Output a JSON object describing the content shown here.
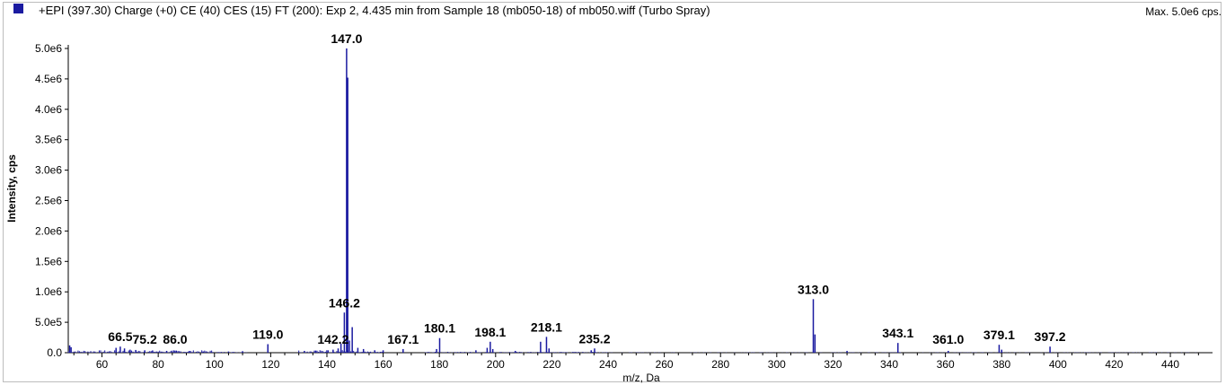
{
  "header": {
    "title": "+EPI (397.30) Charge (+0) CE (40) CES (15) FT (200): Exp 2, 4.435 min from Sample 18 (mb050-18) of mb050.wiff (Turbo Spray)",
    "max_label": "Max. 5.0e6 cps.",
    "series_color": "#1a1aa0",
    "legend_icon": "blue-square-icon"
  },
  "chart_data": {
    "type": "bar",
    "title": "+EPI (397.30) Charge (+0) CE (40) CES (15) FT (200): Exp 2, 4.435 min from Sample 18 (mb050-18) of mb050.wiff (Turbo Spray)",
    "xlabel": "m/z, Da",
    "ylabel": "Intensity, cps",
    "xlim": [
      48,
      455
    ],
    "ylim": [
      0,
      5000000.0
    ],
    "x_ticks": [
      60,
      80,
      100,
      120,
      140,
      160,
      180,
      200,
      220,
      240,
      260,
      280,
      300,
      320,
      340,
      360,
      380,
      400,
      420,
      440
    ],
    "y_ticks": [
      {
        "value": 0,
        "label": "0.0"
      },
      {
        "value": 500000,
        "label": "5.0e5"
      },
      {
        "value": 1000000,
        "label": "1.0e6"
      },
      {
        "value": 1500000,
        "label": "1.5e6"
      },
      {
        "value": 2000000,
        "label": "2.0e6"
      },
      {
        "value": 2500000,
        "label": "2.5e6"
      },
      {
        "value": 3000000,
        "label": "3.0e6"
      },
      {
        "value": 3500000,
        "label": "3.5e6"
      },
      {
        "value": 4000000,
        "label": "4.0e6"
      },
      {
        "value": 4500000,
        "label": "4.5e6"
      },
      {
        "value": 5000000,
        "label": "5.0e6"
      }
    ],
    "grid": false,
    "peaks": [
      {
        "mz": 48.5,
        "intensity": 120000
      },
      {
        "mz": 49.0,
        "intensity": 90000
      },
      {
        "mz": 65.0,
        "intensity": 80000
      },
      {
        "mz": 66.5,
        "intensity": 100000
      },
      {
        "mz": 68.0,
        "intensity": 70000
      },
      {
        "mz": 70.0,
        "intensity": 50000
      },
      {
        "mz": 72.0,
        "intensity": 45000
      },
      {
        "mz": 75.2,
        "intensity": 40000
      },
      {
        "mz": 78.0,
        "intensity": 35000
      },
      {
        "mz": 83.0,
        "intensity": 30000
      },
      {
        "mz": 86.0,
        "intensity": 30000
      },
      {
        "mz": 91.0,
        "intensity": 25000
      },
      {
        "mz": 96.0,
        "intensity": 20000
      },
      {
        "mz": 105.0,
        "intensity": 20000
      },
      {
        "mz": 110.0,
        "intensity": 25000
      },
      {
        "mz": 119.0,
        "intensity": 140000
      },
      {
        "mz": 132.0,
        "intensity": 30000
      },
      {
        "mz": 136.0,
        "intensity": 35000
      },
      {
        "mz": 140.0,
        "intensity": 40000
      },
      {
        "mz": 142.2,
        "intensity": 50000
      },
      {
        "mz": 144.0,
        "intensity": 70000
      },
      {
        "mz": 145.0,
        "intensity": 150000
      },
      {
        "mz": 146.2,
        "intensity": 660000
      },
      {
        "mz": 147.0,
        "intensity": 5000000
      },
      {
        "mz": 147.4,
        "intensity": 4520000
      },
      {
        "mz": 148.0,
        "intensity": 200000
      },
      {
        "mz": 149.0,
        "intensity": 420000
      },
      {
        "mz": 151.0,
        "intensity": 80000
      },
      {
        "mz": 153.0,
        "intensity": 60000
      },
      {
        "mz": 157.0,
        "intensity": 40000
      },
      {
        "mz": 160.0,
        "intensity": 40000
      },
      {
        "mz": 167.1,
        "intensity": 60000
      },
      {
        "mz": 180.1,
        "intensity": 240000
      },
      {
        "mz": 179.0,
        "intensity": 60000
      },
      {
        "mz": 193.0,
        "intensity": 40000
      },
      {
        "mz": 197.0,
        "intensity": 80000
      },
      {
        "mz": 198.1,
        "intensity": 180000
      },
      {
        "mz": 199.0,
        "intensity": 60000
      },
      {
        "mz": 207.0,
        "intensity": 30000
      },
      {
        "mz": 216.0,
        "intensity": 180000
      },
      {
        "mz": 218.1,
        "intensity": 260000
      },
      {
        "mz": 219.0,
        "intensity": 70000
      },
      {
        "mz": 234.0,
        "intensity": 40000
      },
      {
        "mz": 235.2,
        "intensity": 70000
      },
      {
        "mz": 313.0,
        "intensity": 880000
      },
      {
        "mz": 313.6,
        "intensity": 300000
      },
      {
        "mz": 325.0,
        "intensity": 30000
      },
      {
        "mz": 343.1,
        "intensity": 160000
      },
      {
        "mz": 361.0,
        "intensity": 30000
      },
      {
        "mz": 379.1,
        "intensity": 130000
      },
      {
        "mz": 380.0,
        "intensity": 50000
      },
      {
        "mz": 397.2,
        "intensity": 100000
      }
    ],
    "peak_labels": [
      {
        "text": "66.5",
        "mz": 66.5,
        "intensity": 100000
      },
      {
        "text": "75.2",
        "mz": 75.2,
        "intensity": 40000
      },
      {
        "text": "86.0",
        "mz": 86.0,
        "intensity": 30000
      },
      {
        "text": "119.0",
        "mz": 119.0,
        "intensity": 140000
      },
      {
        "text": "142.2",
        "mz": 142.2,
        "intensity": 50000
      },
      {
        "text": "146.2",
        "mz": 146.2,
        "intensity": 660000
      },
      {
        "text": "147.0",
        "mz": 147.0,
        "intensity": 5000000
      },
      {
        "text": "167.1",
        "mz": 167.1,
        "intensity": 60000
      },
      {
        "text": "180.1",
        "mz": 180.1,
        "intensity": 240000
      },
      {
        "text": "198.1",
        "mz": 198.1,
        "intensity": 180000
      },
      {
        "text": "218.1",
        "mz": 218.1,
        "intensity": 260000
      },
      {
        "text": "235.2",
        "mz": 235.2,
        "intensity": 70000
      },
      {
        "text": "313.0",
        "mz": 313.0,
        "intensity": 880000
      },
      {
        "text": "343.1",
        "mz": 343.1,
        "intensity": 160000
      },
      {
        "text": "361.0",
        "mz": 361.0,
        "intensity": 30000
      },
      {
        "text": "379.1",
        "mz": 379.1,
        "intensity": 130000
      },
      {
        "text": "397.2",
        "mz": 397.2,
        "intensity": 100000
      }
    ]
  }
}
